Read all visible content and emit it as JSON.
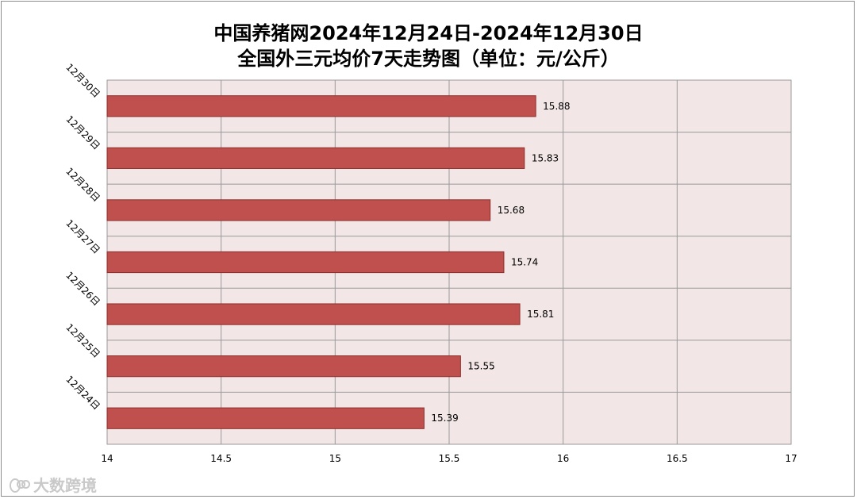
{
  "title_line1": "中国养猪网2024年12月24日-2024年12月30日",
  "title_line2": "全国外三元均价7天走势图（单位：元/公斤）",
  "watermark_text": "大数跨境",
  "colors": {
    "bar": "#c0504d",
    "bar_edge": "#8c2f2c",
    "plot_bg": "#f2e6e6",
    "grid": "#9a9a9a"
  },
  "chart_data": {
    "type": "bar",
    "orientation": "horizontal",
    "categories": [
      "12月30日",
      "12月29日",
      "12月28日",
      "12月27日",
      "12月26日",
      "12月25日",
      "12月24日"
    ],
    "values": [
      15.88,
      15.83,
      15.68,
      15.74,
      15.81,
      15.55,
      15.39
    ],
    "data_labels": [
      "15.88",
      "15.83",
      "15.68",
      "15.74",
      "15.81",
      "15.55",
      "15.39"
    ],
    "xlim": [
      14,
      17
    ],
    "x_ticks": [
      14,
      14.5,
      15,
      15.5,
      16,
      16.5,
      17
    ],
    "x_tick_labels": [
      "14",
      "14.5",
      "15",
      "15.5",
      "16",
      "16.5",
      "17"
    ],
    "grid": true,
    "legend": "none"
  }
}
